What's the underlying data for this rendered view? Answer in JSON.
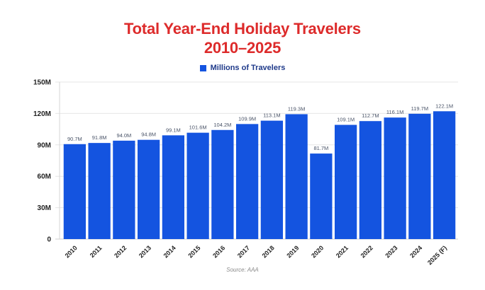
{
  "chart_data": {
    "type": "bar",
    "title_line1": "Total Year-End Holiday Travelers",
    "title_line2": "2010–2025",
    "legend": [
      {
        "label": "Millions of Travelers",
        "color": "#1454e0"
      }
    ],
    "categories": [
      "2010",
      "2011",
      "2012",
      "2013",
      "2014",
      "2015",
      "2016",
      "2017",
      "2018",
      "2019",
      "2020",
      "2021",
      "2022",
      "2023",
      "2024",
      "2025 (F)"
    ],
    "series": [
      {
        "name": "Millions of Travelers",
        "values": [
          90.7,
          91.8,
          94.0,
          94.8,
          99.1,
          101.6,
          104.2,
          109.9,
          113.1,
          119.3,
          81.7,
          109.1,
          112.7,
          116.1,
          119.7,
          122.1
        ],
        "labels": [
          "90.7M",
          "91.8M",
          "94.0M",
          "94.8M",
          "99.1M",
          "101.6M",
          "104.2M",
          "109.9M",
          "113.1M",
          "119.3M",
          "81.7M",
          "109.1M",
          "112.7M",
          "116.1M",
          "119.7M",
          "122.1M"
        ],
        "color": "#1454e0"
      }
    ],
    "yticks": [
      0,
      30,
      60,
      90,
      120,
      150
    ],
    "ytick_labels": [
      "0",
      "30M",
      "60M",
      "90M",
      "120M",
      "150M"
    ],
    "ylim": [
      0,
      150
    ],
    "grid": true,
    "legend_position": "top-center",
    "source": "Source: AAA",
    "colors": {
      "title": "#dd2b2b",
      "bar": "#1454e0",
      "grid": "#e6e6e6",
      "axis_text": "#222222",
      "label_text": "#4a5468"
    }
  }
}
